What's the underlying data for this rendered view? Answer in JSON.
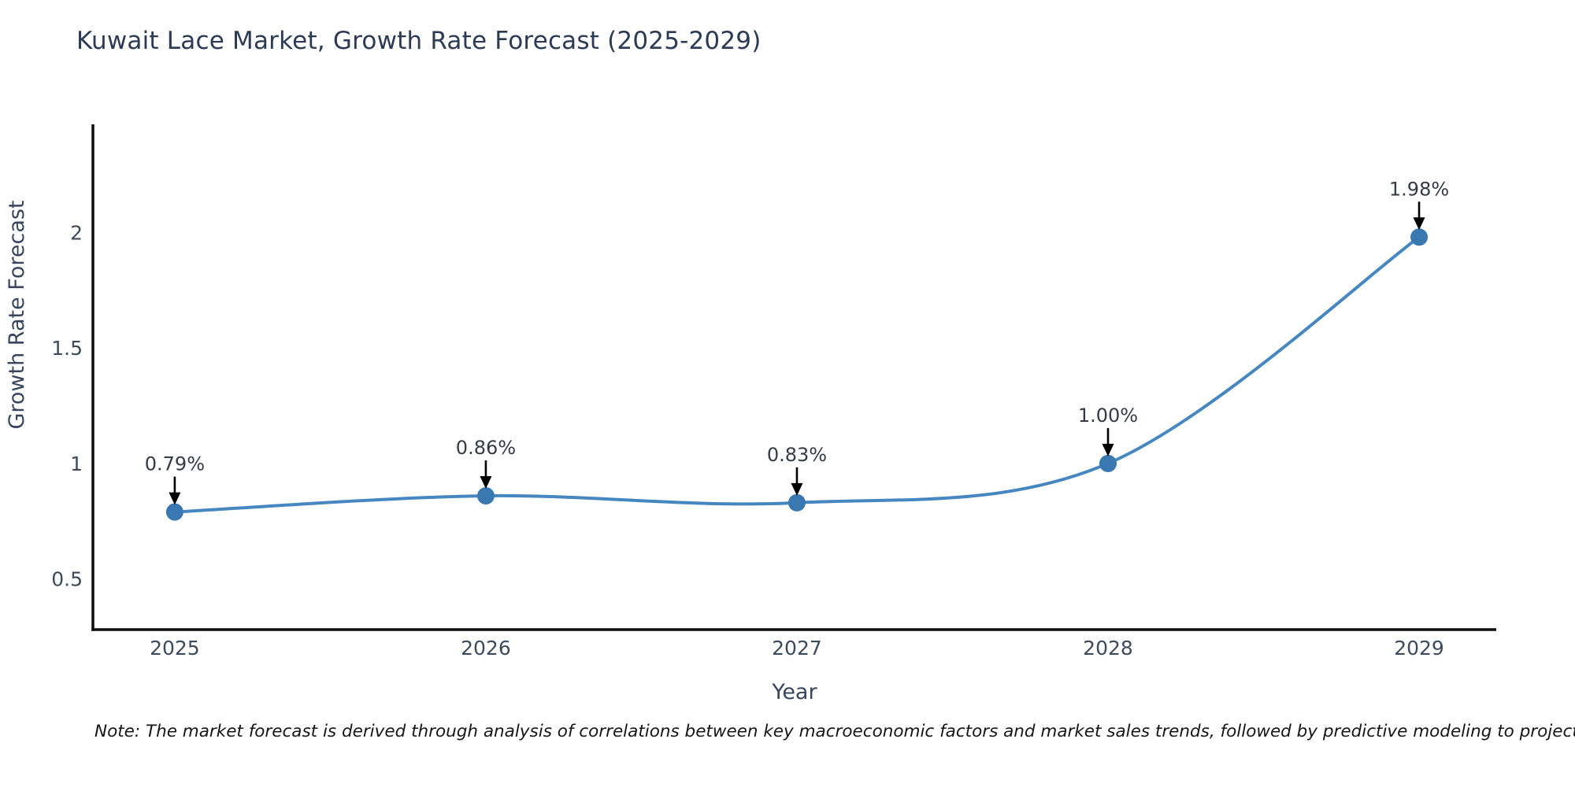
{
  "chart": {
    "title": "Kuwait Lace Market, Growth Rate Forecast (2025-2029)"
  },
  "chart_data": {
    "type": "line",
    "title": "Kuwait Lace Market, Growth Rate Forecast (2025-2029)",
    "xlabel": "Year",
    "ylabel": "Growth Rate Forecast",
    "x": [
      2025,
      2026,
      2027,
      2028,
      2029
    ],
    "y": [
      0.79,
      0.86,
      0.83,
      1.0,
      1.98
    ],
    "series": [
      {
        "name": "Growth Rate Forecast",
        "values": [
          0.79,
          0.86,
          0.83,
          1.0,
          1.98
        ]
      }
    ],
    "point_labels": [
      "0.79%",
      "0.86%",
      "0.83%",
      "1.00%",
      "1.98%"
    ],
    "xticklabels": [
      "2025",
      "2026",
      "2027",
      "2028",
      "2029"
    ],
    "yticks": [
      0.5,
      1,
      1.5,
      2
    ],
    "yticklabels": [
      "0.5",
      "1",
      "1.5",
      "2"
    ],
    "xlim": [
      2024.737,
      2029.248
    ],
    "ylim": [
      0.281,
      2.468
    ],
    "grid": false,
    "legend_position": "none",
    "line_smoothing": true
  },
  "note": {
    "text": "Note: The market forecast is derived through analysis of correlations between key macroeconomic factors and market sales trends, followed by predictive modeling to project future sales"
  },
  "colors": {
    "title_text": "#2b3a55",
    "tick_text": "#3d4a5c",
    "axis_label_text": "#37455e",
    "annotation_text": "#333b47",
    "note_text": "#161616",
    "axis_spine": "#0d0d0d",
    "line": "#4687c1",
    "marker": "#3a78b2",
    "arrow": "#000000",
    "background": "#ffffff"
  }
}
